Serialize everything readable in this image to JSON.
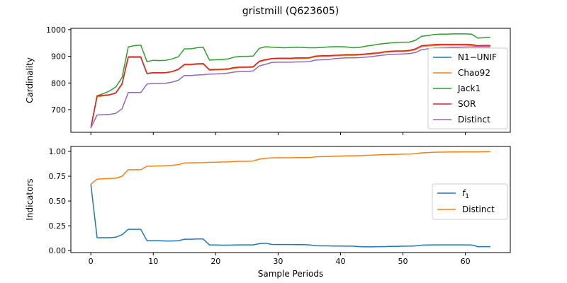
{
  "title": "gristmill (Q623605)",
  "chart_data": [
    {
      "type": "line",
      "ylabel": "Cardinality",
      "xlabel": "",
      "xlim": [
        -3.2,
        67.2
      ],
      "ylim": [
        615,
        1005
      ],
      "xticks": [
        0,
        10,
        20,
        30,
        40,
        50,
        60
      ],
      "yticks": [
        700,
        800,
        900,
        1000
      ],
      "ytick_labels": [
        "700",
        "800",
        "900",
        "1000"
      ],
      "grid": false,
      "legend": "right",
      "series": [
        {
          "name": "N1−UNIF",
          "color": "#1f77b4",
          "values": [
            632,
            748,
            752,
            755,
            762,
            795,
            896,
            896,
            896,
            835,
            838,
            837,
            838,
            842,
            850,
            868,
            868,
            870,
            871,
            848,
            849,
            850,
            851,
            856,
            858,
            858,
            859,
            880,
            886,
            890,
            891,
            891,
            891,
            892,
            892,
            893,
            899,
            900,
            900,
            902,
            903,
            904,
            904,
            905,
            907,
            909,
            911,
            915,
            917,
            918,
            918,
            920,
            925,
            937,
            939,
            941,
            942,
            942,
            942,
            942,
            942,
            941,
            937,
            938,
            938
          ]
        },
        {
          "name": "Chao92",
          "color": "#ff7f0e",
          "values": [
            632,
            748,
            752,
            755,
            762,
            795,
            896,
            896,
            896,
            835,
            838,
            837,
            838,
            842,
            850,
            868,
            868,
            870,
            871,
            848,
            849,
            850,
            851,
            856,
            858,
            858,
            859,
            880,
            886,
            890,
            891,
            891,
            891,
            892,
            892,
            893,
            899,
            900,
            900,
            902,
            903,
            904,
            904,
            905,
            907,
            909,
            911,
            915,
            917,
            918,
            918,
            920,
            925,
            937,
            939,
            941,
            942,
            942,
            942,
            942,
            942,
            941,
            937,
            938,
            938
          ]
        },
        {
          "name": "Jack1",
          "color": "#2ca02c",
          "values": [
            632,
            752,
            760,
            770,
            785,
            820,
            935,
            940,
            942,
            880,
            885,
            884,
            885,
            890,
            898,
            928,
            928,
            932,
            934,
            886,
            887,
            888,
            890,
            897,
            900,
            900,
            901,
            930,
            936,
            934,
            933,
            932,
            933,
            934,
            933,
            932,
            932,
            933,
            935,
            936,
            936,
            935,
            932,
            933,
            938,
            941,
            945,
            948,
            950,
            952,
            953,
            953,
            960,
            975,
            978,
            982,
            983,
            983,
            984,
            984,
            984,
            983,
            968,
            970,
            971
          ]
        },
        {
          "name": "SOR",
          "color": "#d62728",
          "values": [
            632,
            752,
            754,
            756,
            763,
            797,
            898,
            898,
            898,
            836,
            839,
            838,
            839,
            843,
            851,
            870,
            870,
            872,
            873,
            850,
            851,
            852,
            853,
            858,
            860,
            860,
            861,
            882,
            888,
            892,
            893,
            893,
            893,
            894,
            894,
            895,
            901,
            902,
            902,
            904,
            905,
            906,
            906,
            907,
            909,
            911,
            913,
            917,
            919,
            920,
            920,
            922,
            928,
            940,
            942,
            944,
            945,
            945,
            945,
            945,
            945,
            944,
            940,
            941,
            941
          ]
        },
        {
          "name": "Distinct",
          "color": "#9467bd",
          "values": [
            632,
            680,
            681,
            682,
            686,
            703,
            764,
            764,
            764,
            796,
            798,
            798,
            799,
            803,
            810,
            828,
            828,
            830,
            831,
            833,
            834,
            835,
            837,
            841,
            843,
            843,
            845,
            864,
            870,
            877,
            878,
            878,
            878,
            879,
            879,
            880,
            886,
            887,
            888,
            891,
            893,
            894,
            894,
            895,
            897,
            899,
            902,
            905,
            907,
            908,
            909,
            910,
            914,
            925,
            928,
            931,
            932,
            933,
            934,
            934,
            935,
            935,
            935,
            935,
            935
          ]
        }
      ]
    },
    {
      "type": "line",
      "ylabel": "Indicators",
      "xlabel": "Sample Periods",
      "xlim": [
        -3.2,
        67.2
      ],
      "ylim": [
        -0.02,
        1.05
      ],
      "xticks": [
        0,
        10,
        20,
        30,
        40,
        50,
        60
      ],
      "xtick_labels": [
        "0",
        "10",
        "20",
        "30",
        "40",
        "50",
        "60"
      ],
      "yticks": [
        0.0,
        0.25,
        0.5,
        0.75,
        1.0
      ],
      "ytick_labels": [
        "0.00",
        "0.25",
        "0.50",
        "0.75",
        "1.00"
      ],
      "grid": false,
      "legend": "right",
      "series": [
        {
          "name": "f1",
          "color": "#1f77b4",
          "values": [
            0.67,
            0.13,
            0.13,
            0.13,
            0.135,
            0.16,
            0.215,
            0.215,
            0.215,
            0.1,
            0.1,
            0.1,
            0.097,
            0.097,
            0.1,
            0.115,
            0.115,
            0.117,
            0.117,
            0.056,
            0.056,
            0.055,
            0.055,
            0.057,
            0.058,
            0.058,
            0.058,
            0.07,
            0.075,
            0.062,
            0.061,
            0.061,
            0.061,
            0.06,
            0.06,
            0.058,
            0.05,
            0.048,
            0.048,
            0.046,
            0.046,
            0.045,
            0.045,
            0.04,
            0.038,
            0.038,
            0.04,
            0.04,
            0.042,
            0.043,
            0.045,
            0.045,
            0.047,
            0.055,
            0.056,
            0.058,
            0.058,
            0.058,
            0.058,
            0.058,
            0.058,
            0.057,
            0.04,
            0.04,
            0.04
          ]
        },
        {
          "name": "Distinct",
          "color": "#ff7f0e",
          "values": [
            0.67,
            0.72,
            0.725,
            0.727,
            0.73,
            0.75,
            0.815,
            0.815,
            0.815,
            0.85,
            0.852,
            0.854,
            0.856,
            0.86,
            0.866,
            0.884,
            0.885,
            0.886,
            0.887,
            0.89,
            0.891,
            0.893,
            0.894,
            0.898,
            0.9,
            0.9,
            0.903,
            0.922,
            0.93,
            0.935,
            0.936,
            0.936,
            0.936,
            0.937,
            0.937,
            0.938,
            0.945,
            0.947,
            0.948,
            0.951,
            0.953,
            0.955,
            0.955,
            0.957,
            0.96,
            0.962,
            0.965,
            0.968,
            0.97,
            0.971,
            0.972,
            0.973,
            0.977,
            0.986,
            0.989,
            0.992,
            0.993,
            0.994,
            0.995,
            0.995,
            0.996,
            0.996,
            0.996,
            0.997,
            0.997
          ]
        }
      ]
    }
  ]
}
